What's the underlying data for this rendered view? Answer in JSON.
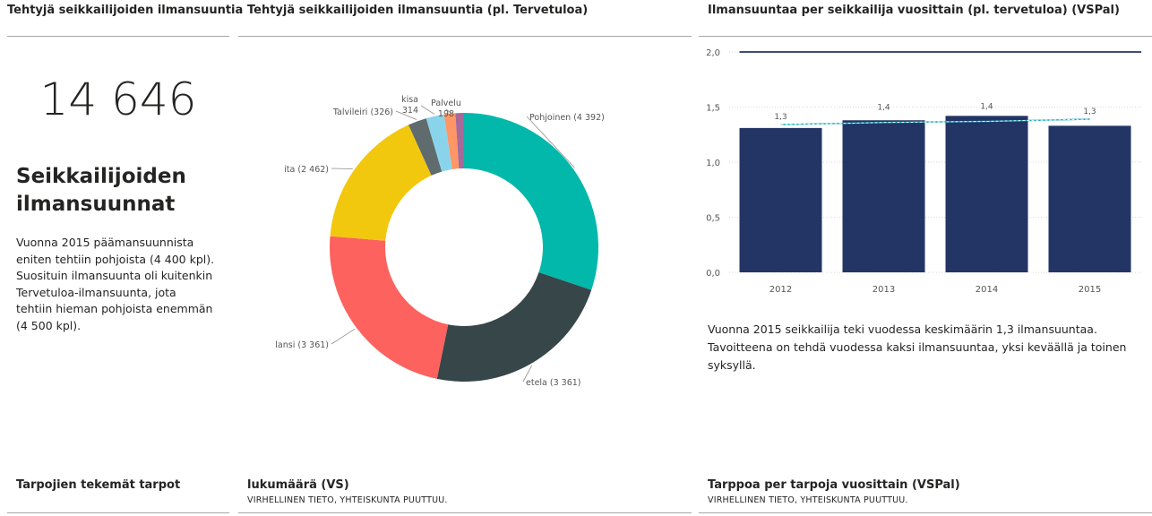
{
  "top": {
    "left_title": "Tehtyjä seikkailijoiden ilmansuuntia",
    "mid_title": "Tehtyjä seikkailijoiden ilmansuuntia (pl. Tervetuloa)",
    "right_title": "Ilmansuuntaa per seikkailija vuosittain (pl. tervetuloa) (VSPal)"
  },
  "kpi": {
    "value": "14 646",
    "heading": "Seikkailijoiden ilmansuunnat",
    "description": "Vuonna 2015 päämansuunnista eniten tehtiin pohjoista (4 400 kpl). Suosituin ilmansuunta oli kuitenkin Tervetuloa-ilmansuunta, jota tehtiin hieman pohjoista enemmän (4 500 kpl)."
  },
  "bar_note": "Vuonna 2015 seikkailija teki vuodessa keskimäärin 1,3 ilmansuuntaa. Tavoitteena on tehdä vuodessa kaksi ilmansuuntaa, yksi keväällä ja toinen syksyllä.",
  "bottom": {
    "left_title": "Tarpojien tekemät tarpot",
    "mid_title": "lukumäärä (VS)",
    "mid_note": "VIRHELLINEN TIETO, YHTEISKUNTA PUUTTUU.",
    "right_title": "Tarppoa per tarpoja vuosittain (VSPal)",
    "right_note": "VIRHELLINEN TIETO, YHTEISKUNTA PUUTTUU."
  },
  "chart_data": [
    {
      "type": "pie",
      "donut": true,
      "title": "Tehtyjä seikkailijoiden ilmansuuntia (pl. Tervetuloa)",
      "slices": [
        {
          "label": "Pohjoinen (4 392)",
          "value": 4392,
          "color": "#01b8aa"
        },
        {
          "label": "etela (3 361)",
          "value": 3361,
          "color": "#374649"
        },
        {
          "label": "lansi (3 361)",
          "value": 3361,
          "color": "#fd625e"
        },
        {
          "label": "ita (2 462)",
          "value": 2462,
          "color": "#f2c80f"
        },
        {
          "label": "Talvileiri (326)",
          "value": 326,
          "color": "#5f6b6d"
        },
        {
          "label": "kisa 314",
          "value": 314,
          "color": "#8ad4eb"
        },
        {
          "label": "Palvelu 198",
          "value": 198,
          "color": "#fe9666"
        },
        {
          "label": "",
          "value": 150,
          "color": "#a66999"
        }
      ]
    },
    {
      "type": "bar",
      "title": "Ilmansuuntaa per seikkailija vuosittain (pl. tervetuloa) (VSPal)",
      "categories": [
        "2012",
        "2013",
        "2014",
        "2015"
      ],
      "values": [
        1.31,
        1.38,
        1.42,
        1.33
      ],
      "value_labels": [
        "1,3",
        "1,4",
        "1,4",
        "1,3"
      ],
      "bar_color": "#233565",
      "trend_line": [
        1.34,
        1.36,
        1.37,
        1.39
      ],
      "target_line": 2.0,
      "target_color": "#233565",
      "yticks": [
        "0,0",
        "0,5",
        "1,0",
        "1,5",
        "2,0"
      ],
      "ylim": [
        0,
        2.0
      ]
    }
  ]
}
